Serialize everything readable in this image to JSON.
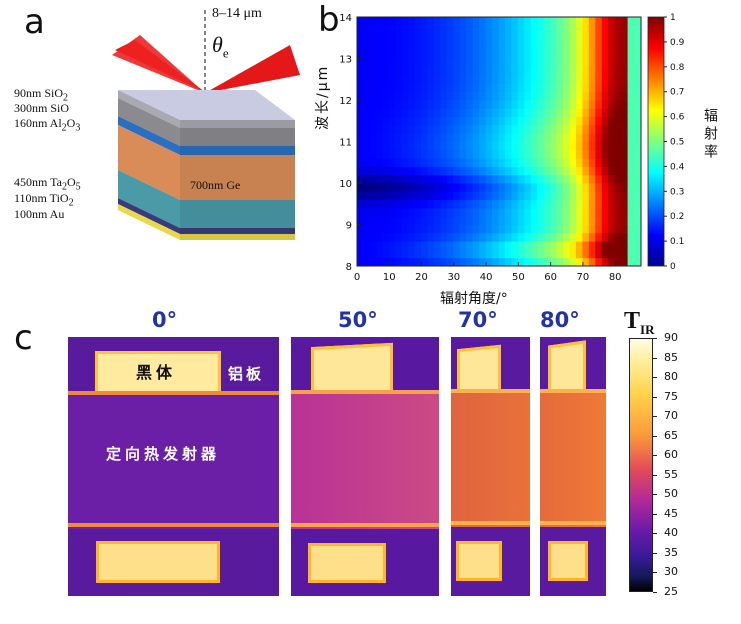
{
  "panel_a": {
    "label": "a",
    "wavelength_label": "8–14 μm",
    "angle_symbol": "θ",
    "angle_subscript": "e",
    "layers": [
      {
        "text": "90nm SiO",
        "sub": "2",
        "color": "#a9a9b1"
      },
      {
        "text": "300nm SiO",
        "sub": "",
        "color": "#8a8a8f"
      },
      {
        "text": "160nm Al",
        "sub": "2",
        "tail": "O",
        "sub2": "3",
        "color": "#2a6fc0"
      },
      {
        "text": "700nm Ge",
        "sub": "",
        "color": "#d98c58"
      },
      {
        "text": "450nm Ta",
        "sub": "2",
        "tail": "O",
        "sub2": "5",
        "color": "#4a9aa8"
      },
      {
        "text": "110nm TiO",
        "sub": "2",
        "color": "#3b3b7a"
      },
      {
        "text": "100nm Au",
        "sub": "",
        "color": "#e8d84a"
      }
    ],
    "ge_inner_label": "700nm Ge"
  },
  "panel_b": {
    "label": "b",
    "chart_data": {
      "type": "heatmap",
      "xlabel": "辐射角度/°",
      "ylabel": "波长/μm",
      "colorbar_label": "辐射率",
      "xlim": [
        0,
        88
      ],
      "ylim": [
        8,
        14
      ],
      "x_ticks": [
        0,
        10,
        20,
        30,
        40,
        50,
        60,
        70,
        80
      ],
      "y_ticks": [
        8,
        9,
        10,
        11,
        12,
        13,
        14
      ],
      "colorbar_ticks": [
        0,
        0.1,
        0.2,
        0.3,
        0.4,
        0.5,
        0.6,
        0.7,
        0.8,
        0.9,
        1
      ],
      "clim": [
        0,
        1
      ],
      "colormap": "jet",
      "description_values": {
        "low_angle_emissivity": 0.15,
        "peak_angle_emissivity": 0.95,
        "peak_angle_range": [
          70,
          85
        ]
      }
    }
  },
  "panel_c": {
    "label": "c",
    "angles": [
      "0°",
      "50°",
      "70°",
      "80°"
    ],
    "annotations": {
      "blackbody": "黑体",
      "aluminum": "铝板",
      "emitter": "定向热发射器"
    },
    "colorbar": {
      "title": "T",
      "title_sub": "IR",
      "ticks": [
        90,
        85,
        80,
        75,
        70,
        65,
        60,
        55,
        50,
        45,
        40,
        35,
        30,
        25
      ],
      "range": [
        25,
        90
      ]
    }
  }
}
